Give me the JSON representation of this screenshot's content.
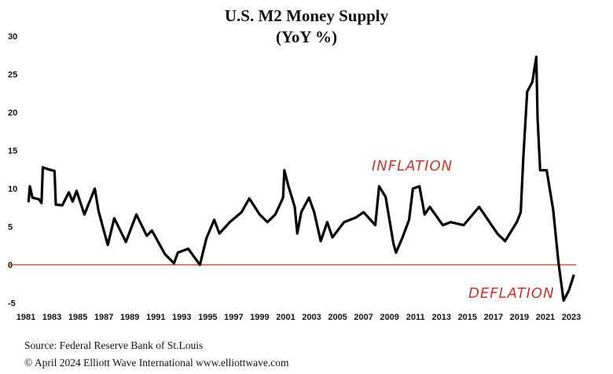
{
  "chart_data": {
    "type": "line",
    "title": "U.S. M2 Money Supply",
    "subtitle": "(YoY %)",
    "xlabel": "",
    "ylabel": "",
    "ylim": [
      -5,
      30
    ],
    "xlim": [
      1981,
      2023
    ],
    "grid": false,
    "y_ticks": [
      "30",
      "25",
      "20",
      "15",
      "10",
      "5",
      "0",
      "-5"
    ],
    "x_ticks": [
      "1981",
      "1983",
      "1985",
      "1987",
      "1989",
      "1991",
      "1993",
      "1995",
      "1997",
      "1999",
      "2001",
      "2003",
      "2005",
      "2007",
      "2009",
      "2011",
      "2013",
      "2015",
      "2017",
      "2019",
      "2021",
      "2023"
    ],
    "reference_line": {
      "y": 0,
      "color": "#c0392b"
    },
    "line_color": "#000000",
    "annotations": [
      {
        "text": "INFLATION",
        "color": "#c0392b"
      },
      {
        "text": "DEFLATION",
        "color": "#c0392b"
      }
    ],
    "series": [
      {
        "x": [
          1981.2,
          1981.3,
          1981.5,
          1982.0,
          1982.2,
          1982.3,
          1982.6,
          1983.2,
          1983.3,
          1983.8,
          1984.3,
          1984.6,
          1984.9,
          1985.5,
          1986.3,
          1986.6,
          1987.3,
          1987.8,
          1988.7,
          1989.5,
          1990.3,
          1990.7,
          1991.7,
          1992.4,
          1992.7,
          1993.5,
          1994.4,
          1994.9,
          1995.5,
          1995.9,
          1996.7,
          1997.6,
          1998.2,
          1999.0,
          1999.6,
          2000.2,
          2000.8,
          2000.9,
          2001.2,
          2001.7,
          2001.9,
          2002.2,
          2002.8,
          2003.2,
          2003.7,
          2004.2,
          2004.6,
          2005.5,
          2006.4,
          2007.0,
          2007.9,
          2008.2,
          2008.7,
          2009.3,
          2009.5,
          2010.0,
          2010.5,
          2010.8,
          2011.3,
          2011.7,
          2012.1,
          2013.1,
          2013.7,
          2014.7,
          2015.9,
          2017.3,
          2017.9,
          2018.8,
          2019.1,
          2019.3,
          2019.6,
          2020.0,
          2020.3,
          2020.4,
          2020.6,
          2021.1,
          2021.6,
          2022.0,
          2022.4,
          2022.8,
          2023.2
        ],
        "y": [
          8.2,
          10.3,
          8.8,
          8.6,
          8.1,
          12.8,
          12.6,
          12.3,
          7.9,
          7.8,
          9.5,
          8.3,
          9.7,
          6.6,
          10.0,
          7.0,
          2.6,
          6.1,
          3.0,
          6.6,
          3.8,
          4.5,
          1.4,
          0.2,
          1.6,
          2.1,
          0.0,
          3.5,
          5.9,
          4.1,
          5.6,
          6.9,
          8.7,
          6.6,
          5.6,
          6.6,
          8.8,
          12.4,
          10.4,
          7.6,
          4.1,
          6.9,
          8.8,
          6.9,
          3.1,
          5.6,
          3.6,
          5.6,
          6.2,
          6.9,
          5.2,
          10.3,
          8.9,
          2.8,
          1.6,
          3.6,
          5.9,
          10.0,
          10.3,
          6.6,
          7.6,
          5.2,
          5.6,
          5.2,
          7.6,
          4.1,
          3.1,
          5.6,
          6.9,
          14.1,
          22.7,
          24.0,
          27.3,
          19.3,
          12.4,
          12.4,
          7.2,
          0.4,
          -4.7,
          -3.4,
          -1.3
        ]
      }
    ]
  },
  "footer": {
    "source": "Source: Federal Reserve Bank of St.Louis",
    "copyright": "© April 2024   Elliott Wave International   www.elliottwave.com"
  }
}
